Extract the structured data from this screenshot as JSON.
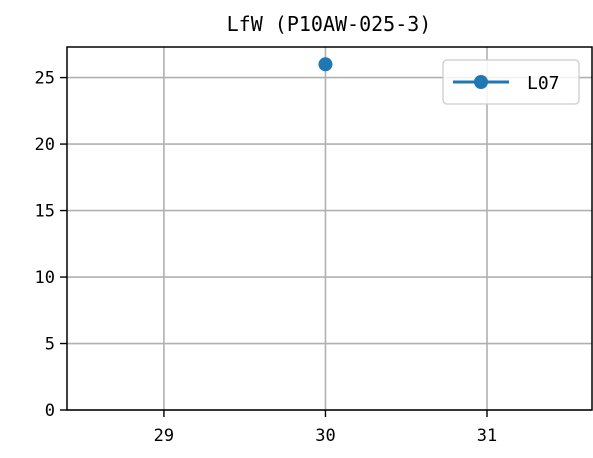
{
  "chart_data": {
    "type": "line",
    "title": "LfW (P10AW-025-3)",
    "xlabel": "",
    "ylabel": "",
    "xlim": [
      28.4,
      31.65
    ],
    "ylim": [
      0,
      27.3
    ],
    "x_ticks": [
      "29",
      "30",
      "31"
    ],
    "y_ticks": [
      "0",
      "5",
      "10",
      "15",
      "20",
      "25"
    ],
    "grid": true,
    "legend_position": "top-right",
    "series": [
      {
        "name": "L07",
        "color": "#1f77b4",
        "marker": "circle",
        "x": [
          30
        ],
        "y": [
          26
        ]
      }
    ]
  }
}
